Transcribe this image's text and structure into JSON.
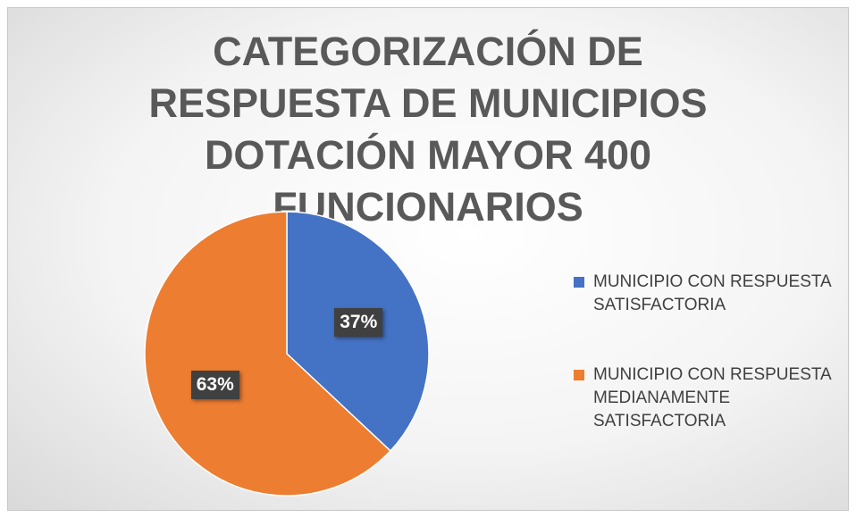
{
  "chart_data": {
    "type": "pie",
    "title": "CATEGORIZACIÓN DE RESPUESTA DE MUNICIPIOS DOTACIÓN MAYOR 400 FUNCIONARIOS",
    "categories": [
      "MUNICIPIO CON RESPUESTA SATISFACTORIA",
      "MUNICIPIO CON RESPUESTA MEDIANAMENTE SATISFACTORIA"
    ],
    "values": [
      37,
      63
    ],
    "value_labels": [
      "37%",
      "63%"
    ],
    "colors": [
      "#4472c4",
      "#ed7d31"
    ],
    "legend": "right"
  }
}
